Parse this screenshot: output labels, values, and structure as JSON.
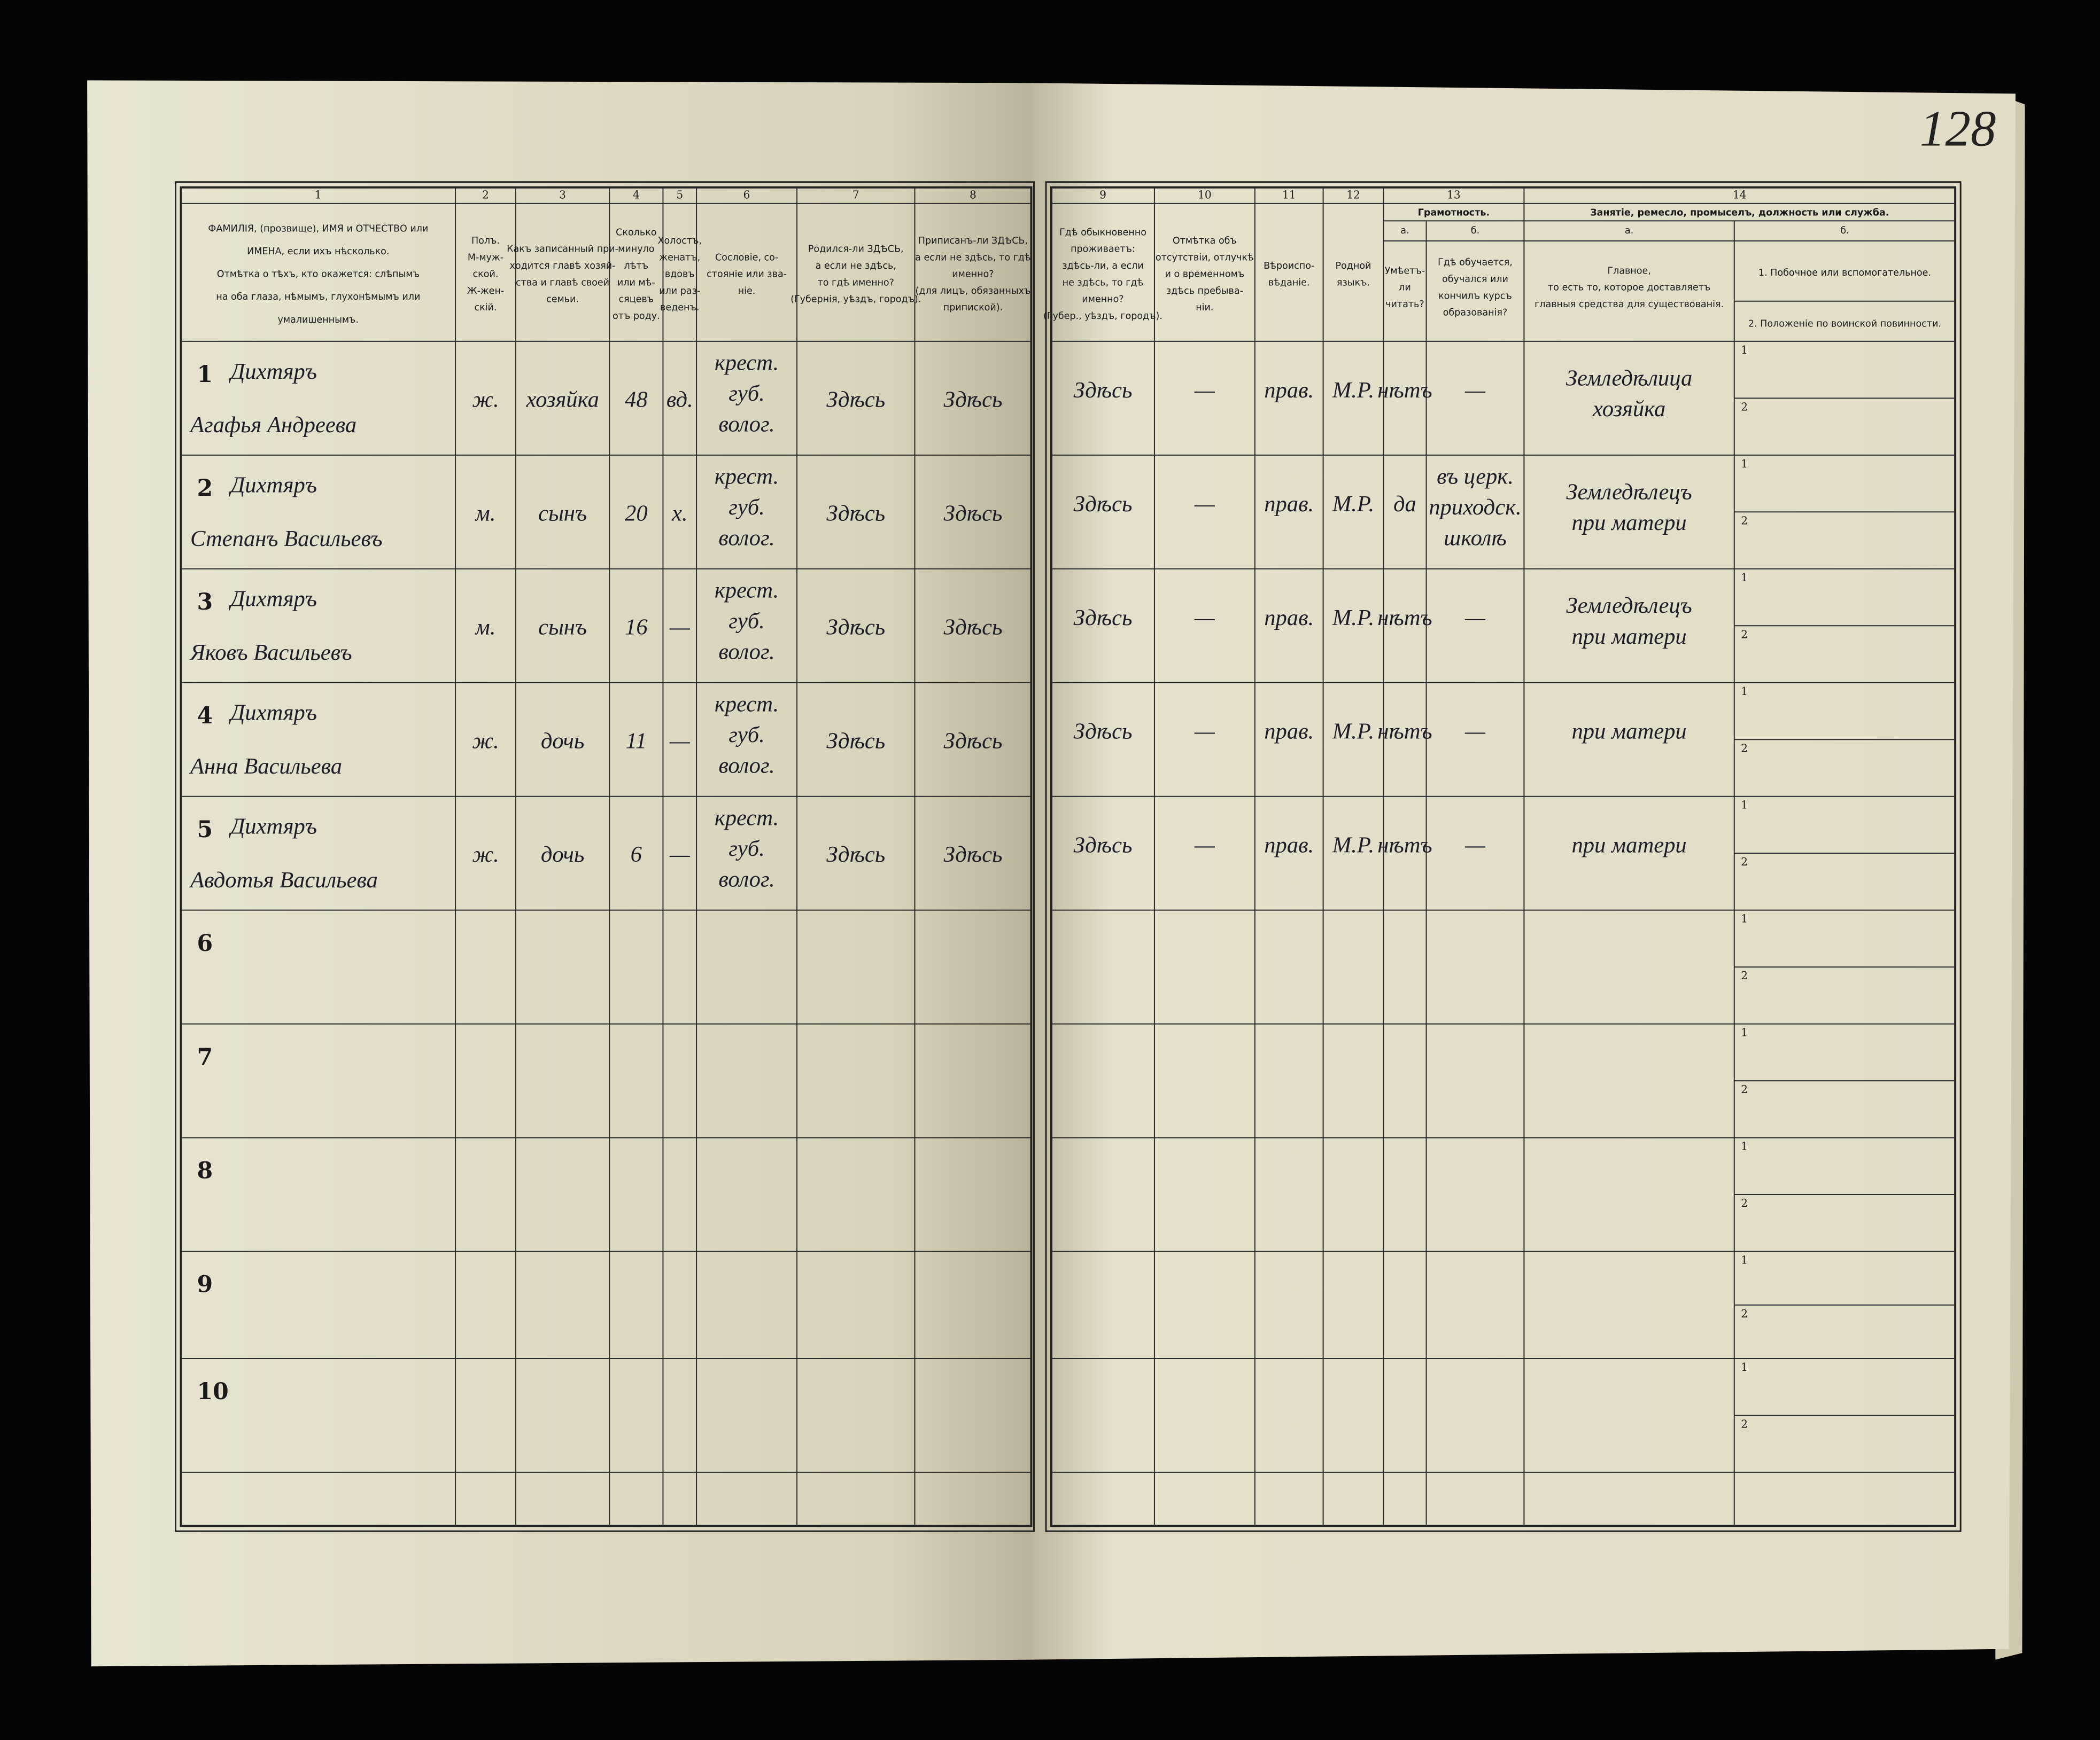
{
  "page_number": "128",
  "left_columns": [
    {
      "number": "1",
      "lines": [
        "ФАМИЛІЯ, (прозвище), ИМЯ и ОТЧЕСТВО или",
        "ИМЕНА, если ихъ нѣсколько.",
        "Отмѣтка о тѣхъ, кто окажется: слѣпымъ",
        "на оба глаза, нѣмымъ, глухонѣмымъ или",
        "умалишеннымъ."
      ]
    },
    {
      "number": "2",
      "lines": [
        "Полъ.",
        "М-муж-",
        "ской.",
        "Ж-жен-",
        "скій."
      ]
    },
    {
      "number": "3",
      "lines": [
        "Какъ записанный при-",
        "ходится главѣ хозяй-",
        "ства и главѣ своей",
        "семьи."
      ]
    },
    {
      "number": "4",
      "lines": [
        "Сколько",
        "минуло",
        "лѣтъ",
        "или мѣ-",
        "сяцевъ",
        "отъ роду."
      ]
    },
    {
      "number": "5",
      "lines": [
        "Холостъ,",
        "женатъ,",
        "вдовъ",
        "или раз-",
        "веденъ."
      ]
    },
    {
      "number": "6",
      "lines": [
        "Сословіе, со-",
        "стояніе или зва-",
        "ніе."
      ]
    },
    {
      "number": "7",
      "lines": [
        "Родился-ли ЗДѢСЬ,",
        "а если не здѣсь,",
        "то гдѣ именно?",
        "(Губернія, уѣздъ, городъ)."
      ]
    },
    {
      "number": "8",
      "lines": [
        "Приписанъ-ли ЗДѢСЬ,",
        "а если не здѣсь, то гдѣ",
        "именно?",
        "(для лицъ, обязанныхъ",
        "припиской)."
      ]
    }
  ],
  "right_columns": [
    {
      "number": "9",
      "lines": [
        "Гдѣ обыкновенно",
        "проживаетъ:",
        "здѣсь-ли, а если",
        "не здѣсь, то гдѣ",
        "именно?",
        "(Губер., уѣздъ, городъ)."
      ]
    },
    {
      "number": "10",
      "lines": [
        "Отмѣтка объ",
        "отсутствіи, отлучкѣ",
        "и о временномъ",
        "здѣсь пребыва-",
        "ніи."
      ]
    },
    {
      "number": "11",
      "lines": [
        "Вѣроиспо-",
        "вѣданіе."
      ]
    },
    {
      "number": "12",
      "lines": [
        "Родной",
        "языкъ."
      ]
    }
  ],
  "literacy": {
    "number": "13",
    "title": "Грамотность.",
    "sub": [
      {
        "letter": "а.",
        "lines": [
          "Умѣетъ-",
          "ли",
          "читать?"
        ]
      },
      {
        "letter": "б.",
        "lines": [
          "Гдѣ обучается,",
          "обучался или",
          "кончилъ курсъ",
          "образованія?"
        ]
      }
    ]
  },
  "occupation": {
    "number": "14",
    "title": "Занятіе, ремесло, промыселъ, должность или служба.",
    "sub": [
      {
        "letter": "а.",
        "lines": [
          "Главное,",
          "то есть то, которое доставляетъ",
          "главныя средства для существованія."
        ]
      },
      {
        "letter": "б.",
        "lines": [
          "1. Побочное или вспомогательное.",
          "2. Положеніе по воинской повинности."
        ]
      }
    ]
  },
  "part_labels": [
    "1",
    "2"
  ],
  "rows": [
    {
      "number": "1",
      "name": [
        "Дихтяръ",
        "Агафья Андреева"
      ],
      "left": [
        "ж.",
        "хозяйка",
        "48",
        "вд.",
        [
          "крест.",
          "губ.",
          "волог."
        ],
        "Здѣсь",
        "Здѣсь"
      ],
      "right": [
        "Здѣсь",
        "—",
        "прав.",
        "М.Р.",
        "нѣтъ",
        "—",
        [
          "Земледѣлица",
          "хозяйка"
        ]
      ]
    },
    {
      "number": "2",
      "name": [
        "Дихтяръ",
        "Степанъ Васильевъ"
      ],
      "left": [
        "м.",
        "сынъ",
        "20",
        "х.",
        [
          "крест.",
          "губ.",
          "волог."
        ],
        "Здѣсь",
        "Здѣсь"
      ],
      "right": [
        "Здѣсь",
        "—",
        "прав.",
        "М.Р.",
        "да",
        [
          "въ церк.",
          "приходск.",
          "школѣ"
        ],
        [
          "Земледѣлецъ",
          "при матери"
        ]
      ]
    },
    {
      "number": "3",
      "name": [
        "Дихтяръ",
        "Яковъ Васильевъ"
      ],
      "left": [
        "м.",
        "сынъ",
        "16",
        "—",
        [
          "крест.",
          "губ.",
          "волог."
        ],
        "Здѣсь",
        "Здѣсь"
      ],
      "right": [
        "Здѣсь",
        "—",
        "прав.",
        "М.Р.",
        "нѣтъ",
        "—",
        [
          "Земледѣлецъ",
          "при матери"
        ]
      ]
    },
    {
      "number": "4",
      "name": [
        "Дихтяръ",
        "Анна Васильева"
      ],
      "left": [
        "ж.",
        "дочь",
        "11",
        "—",
        [
          "крест.",
          "губ.",
          "волог."
        ],
        "Здѣсь",
        "Здѣсь"
      ],
      "right": [
        "Здѣсь",
        "—",
        "прав.",
        "М.Р.",
        "нѣтъ",
        "—",
        "при матери"
      ]
    },
    {
      "number": "5",
      "name": [
        "Дихтяръ",
        "Авдотья Васильева"
      ],
      "left": [
        "ж.",
        "дочь",
        "6",
        "—",
        [
          "крест.",
          "губ.",
          "волог."
        ],
        "Здѣсь",
        "Здѣсь"
      ],
      "right": [
        "Здѣсь",
        "—",
        "прав.",
        "М.Р.",
        "нѣтъ",
        "—",
        "при матери"
      ]
    },
    {
      "number": "6"
    },
    {
      "number": "7"
    },
    {
      "number": "8"
    },
    {
      "number": "9"
    },
    {
      "number": "10"
    }
  ]
}
